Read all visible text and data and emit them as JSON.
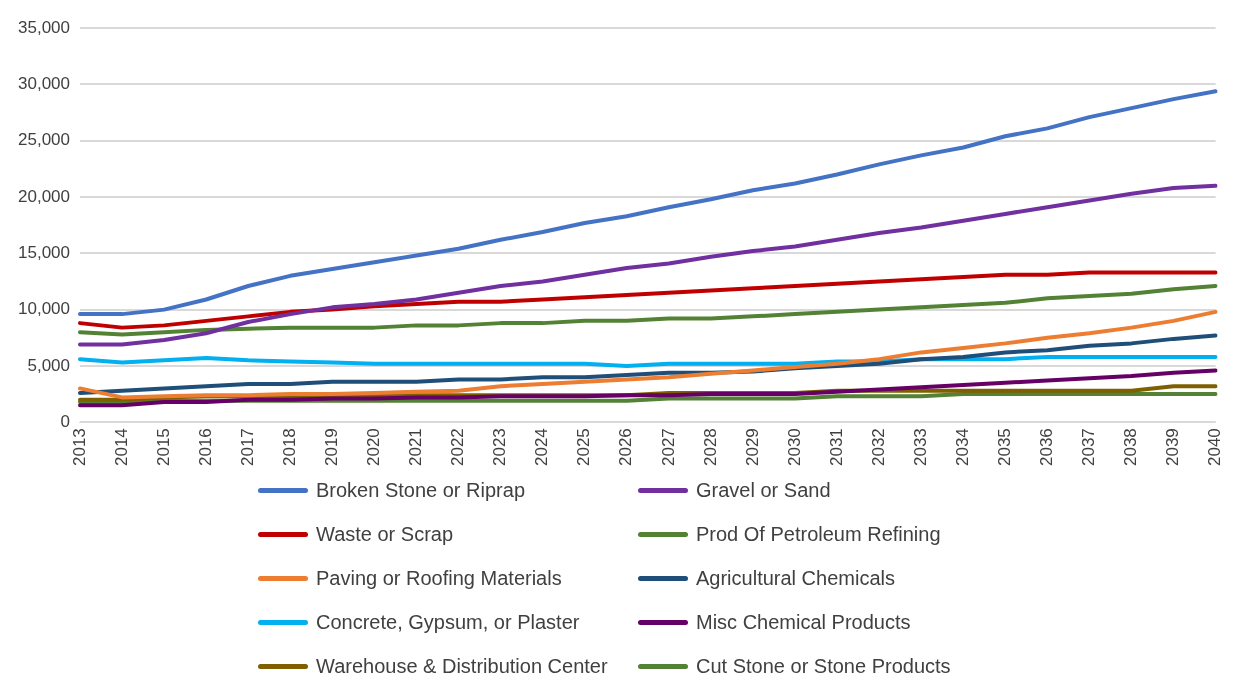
{
  "chart_data": {
    "type": "line",
    "categories": [
      "2013",
      "2014",
      "2015",
      "2016",
      "2017",
      "2018",
      "2019",
      "2020",
      "2021",
      "2022",
      "2023",
      "2024",
      "2025",
      "2026",
      "2027",
      "2028",
      "2029",
      "2030",
      "2031",
      "2032",
      "2033",
      "2034",
      "2035",
      "2036",
      "2037",
      "2038",
      "2039",
      "2040"
    ],
    "ylim": [
      0,
      35000
    ],
    "yticks": [
      {
        "value": 0,
        "label": "0"
      },
      {
        "value": 5000,
        "label": "5,000"
      },
      {
        "value": 10000,
        "label": "10,000"
      },
      {
        "value": 15000,
        "label": "15,000"
      },
      {
        "value": 20000,
        "label": "20,000"
      },
      {
        "value": 25000,
        "label": "25,000"
      },
      {
        "value": 30000,
        "label": "30,000"
      },
      {
        "value": 35000,
        "label": "35,000"
      }
    ],
    "grid": "y",
    "legend": "bottom",
    "marker": "none",
    "line_style": "solid",
    "series": [
      {
        "name": "Broken Stone or Riprap",
        "color": "#4472c4",
        "values": [
          9600,
          9600,
          10000,
          10900,
          12100,
          13000,
          13600,
          14200,
          14800,
          15400,
          16200,
          16900,
          17700,
          18300,
          19100,
          19800,
          20600,
          21200,
          22000,
          22900,
          23700,
          24400,
          25400,
          26100,
          27100,
          27900,
          28700,
          29400
        ]
      },
      {
        "name": "Gravel or Sand",
        "color": "#7030a0",
        "values": [
          6900,
          6900,
          7300,
          7900,
          8900,
          9600,
          10200,
          10500,
          10900,
          11500,
          12100,
          12500,
          13100,
          13700,
          14100,
          14700,
          15200,
          15600,
          16200,
          16800,
          17300,
          17900,
          18500,
          19100,
          19700,
          20300,
          20800,
          21000
        ]
      },
      {
        "name": "Waste or Scrap",
        "color": "#c00000",
        "values": [
          8800,
          8400,
          8600,
          9000,
          9400,
          9800,
          10000,
          10300,
          10500,
          10700,
          10700,
          10900,
          11100,
          11300,
          11500,
          11700,
          11900,
          12100,
          12300,
          12500,
          12700,
          12900,
          13100,
          13100,
          13300,
          13300,
          13300,
          13300
        ]
      },
      {
        "name": "Prod Of Petroleum Refining",
        "color": "#548235",
        "values": [
          8000,
          7800,
          8000,
          8200,
          8300,
          8400,
          8400,
          8400,
          8600,
          8600,
          8800,
          8800,
          9000,
          9000,
          9200,
          9200,
          9400,
          9600,
          9800,
          10000,
          10200,
          10400,
          10600,
          11000,
          11200,
          11400,
          11800,
          12100
        ]
      },
      {
        "name": "Paving or Roofing Materials",
        "color": "#ed7d31",
        "values": [
          3000,
          2200,
          2300,
          2400,
          2400,
          2500,
          2500,
          2600,
          2700,
          2800,
          3200,
          3400,
          3600,
          3800,
          4000,
          4300,
          4600,
          4900,
          5200,
          5600,
          6200,
          6600,
          7000,
          7500,
          7900,
          8400,
          9000,
          9800
        ]
      },
      {
        "name": "Agricultural Chemicals",
        "color": "#1f4e79",
        "values": [
          2600,
          2800,
          3000,
          3200,
          3400,
          3400,
          3600,
          3600,
          3600,
          3800,
          3800,
          4000,
          4000,
          4200,
          4400,
          4400,
          4500,
          4800,
          5000,
          5200,
          5600,
          5800,
          6200,
          6400,
          6800,
          7000,
          7400,
          7700
        ]
      },
      {
        "name": "Concrete, Gypsum, or Plaster",
        "color": "#00b0f0",
        "values": [
          5600,
          5300,
          5500,
          5700,
          5500,
          5400,
          5300,
          5200,
          5200,
          5200,
          5200,
          5200,
          5200,
          5000,
          5200,
          5200,
          5200,
          5200,
          5400,
          5400,
          5600,
          5600,
          5600,
          5800,
          5800,
          5800,
          5800,
          5800
        ]
      },
      {
        "name": "Misc Chemical Products",
        "color": "#660066",
        "values": [
          1500,
          1500,
          1800,
          1800,
          2000,
          2000,
          2100,
          2100,
          2200,
          2200,
          2300,
          2300,
          2300,
          2400,
          2400,
          2500,
          2500,
          2500,
          2700,
          2900,
          3100,
          3300,
          3500,
          3700,
          3900,
          4100,
          4400,
          4600
        ]
      },
      {
        "name": "Warehouse & Distribution Center",
        "color": "#7f6000",
        "values": [
          2000,
          2000,
          2200,
          2300,
          2300,
          2300,
          2300,
          2400,
          2400,
          2400,
          2400,
          2400,
          2400,
          2400,
          2600,
          2600,
          2600,
          2600,
          2800,
          2800,
          2800,
          2800,
          2800,
          2800,
          2800,
          2800,
          3200,
          3200
        ]
      },
      {
        "name": "Cut Stone or Stone Products",
        "color": "#538135",
        "values": [
          1800,
          1800,
          1900,
          1900,
          1900,
          1900,
          1900,
          1900,
          1900,
          1900,
          1900,
          1900,
          1900,
          1900,
          2100,
          2100,
          2100,
          2100,
          2300,
          2300,
          2300,
          2500,
          2500,
          2500,
          2500,
          2500,
          2500,
          2500
        ]
      }
    ]
  }
}
